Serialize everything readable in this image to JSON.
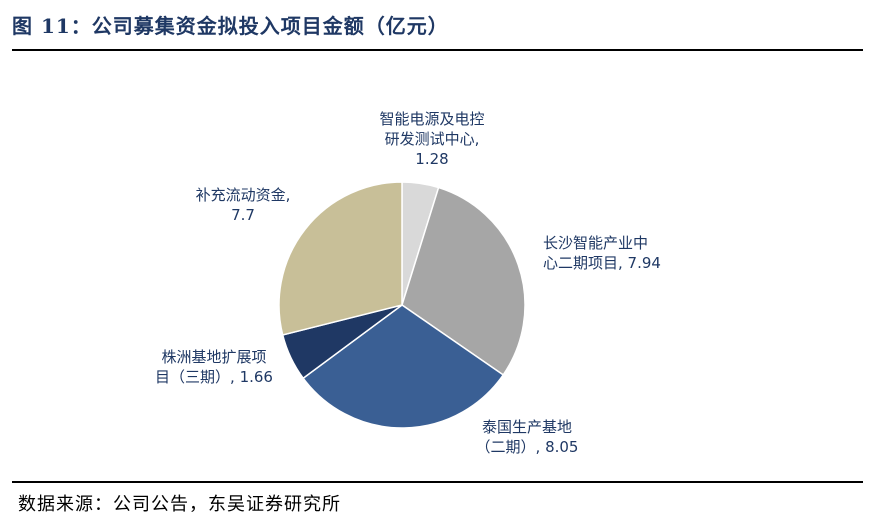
{
  "header": {
    "title": "图 11：公司募集资金拟投入项目金额（亿元）"
  },
  "footer": {
    "source": "数据来源：公司公告，东吴证券研究所"
  },
  "chart_data": {
    "type": "pie",
    "slices": [
      {
        "name": "智能电源及电控研发测试中心",
        "value": 1.28,
        "color": "#d9d9d9",
        "label_lines": [
          "智能电源及电控",
          "研发测试中心,",
          "1.28"
        ]
      },
      {
        "name": "长沙智能产业中心二期项目",
        "value": 7.94,
        "color": "#a6a6a6",
        "label_lines": [
          "长沙智能产业中",
          "心二期项目, 7.94"
        ]
      },
      {
        "name": "泰国生产基地（二期）",
        "value": 8.05,
        "color": "#3a5f94",
        "label_lines": [
          "泰国生产基地",
          "（二期）, 8.05"
        ]
      },
      {
        "name": "株洲基地扩展项目（三期）",
        "value": 1.66,
        "color": "#1f3864",
        "label_lines": [
          "株洲基地扩展项",
          "目（三期）, 1.66"
        ]
      },
      {
        "name": "补充流动资金",
        "value": 7.7,
        "color": "#c8bf98",
        "label_lines": [
          "补充流动资金,",
          "7.7"
        ]
      }
    ]
  }
}
